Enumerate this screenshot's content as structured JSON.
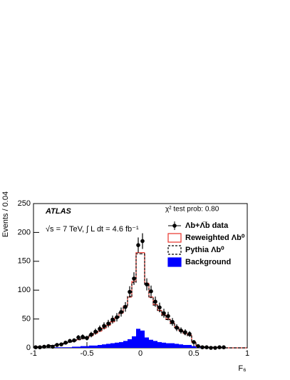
{
  "chart_data": {
    "type": "histogram",
    "title": "ATLAS",
    "subtitle": "√s = 7 TeV, ∫ L dt = 4.6 fb⁻¹",
    "annotation": "χ² test prob: 0.80",
    "x_label": "F₆",
    "y_label": "Events / 0.04",
    "bins": [
      -1,
      -0.96,
      -0.92,
      -0.88,
      -0.84,
      -0.8,
      -0.76,
      -0.72,
      -0.68,
      -0.64,
      -0.6,
      -0.56,
      -0.52,
      -0.48,
      -0.44,
      -0.4,
      -0.36,
      -0.32,
      -0.28,
      -0.24,
      -0.2,
      -0.16,
      -0.12,
      -0.08,
      -0.04,
      0,
      0.04,
      0.08,
      0.12,
      0.16,
      0.2,
      0.24,
      0.28,
      0.32,
      0.36,
      0.4,
      0.44,
      0.48,
      0.52,
      0.56,
      0.6,
      0.64,
      0.68,
      0.72,
      0.76,
      0.8,
      0.84,
      0.88,
      0.92,
      0.96,
      1
    ],
    "series": [
      {
        "name": "Λb+Λ̅b data",
        "color": "#000000",
        "values": [
          1,
          1,
          2,
          3,
          2,
          5,
          6,
          9,
          12,
          13,
          18,
          19,
          17,
          23,
          28,
          33,
          38,
          42,
          49,
          53,
          62,
          71,
          97,
          120,
          178,
          185,
          110,
          98,
          80,
          70,
          60,
          55,
          45,
          35,
          30,
          27,
          24,
          10,
          3,
          1,
          1,
          0,
          0,
          1,
          1,
          null,
          null,
          null,
          null,
          null
        ],
        "errors": [
          1,
          1,
          1.4,
          1.7,
          1.4,
          2.2,
          2.4,
          3,
          3.5,
          3.6,
          4.2,
          4.4,
          4.1,
          4.8,
          5.3,
          5.7,
          6.2,
          6.5,
          7,
          7.3,
          7.9,
          8.4,
          9.8,
          11,
          13.3,
          13.6,
          10.5,
          9.9,
          8.9,
          8.4,
          7.7,
          7.4,
          6.7,
          5.9,
          5.5,
          5.2,
          4.9,
          3.2,
          1.7,
          1,
          1,
          0,
          0,
          1,
          1,
          null,
          null,
          null,
          null,
          null
        ]
      },
      {
        "name": "Reweighted Λb⁰",
        "color": "#e8322a",
        "values": [
          1,
          2,
          2,
          3,
          4,
          5,
          6,
          8,
          10,
          12,
          14,
          16,
          18,
          21,
          25,
          29,
          34,
          39,
          45,
          52,
          60,
          72,
          88,
          115,
          165,
          165,
          112,
          88,
          75,
          65,
          57,
          50,
          43,
          36,
          30,
          25,
          22,
          10,
          3,
          2,
          1,
          1,
          1,
          1,
          0,
          0,
          0,
          0,
          0,
          0
        ]
      },
      {
        "name": "Pythia Λb⁰",
        "color": "#000000",
        "values": [
          1,
          2,
          2,
          3,
          4,
          5,
          6,
          8,
          10,
          12,
          14,
          16,
          19,
          22,
          26,
          30,
          35,
          40,
          46,
          52,
          61,
          73,
          89,
          113,
          163,
          163,
          110,
          87,
          74,
          64,
          56,
          49,
          42,
          35,
          29,
          24,
          21,
          9,
          3,
          2,
          1,
          1,
          1,
          1,
          0,
          0,
          0,
          0,
          0,
          0
        ]
      },
      {
        "name": "Background",
        "color": "#0000ff",
        "values": [
          0,
          0,
          0,
          0,
          0,
          1,
          1,
          1,
          1,
          2,
          2,
          3,
          3,
          4,
          4,
          5,
          6,
          7,
          8,
          9,
          10,
          12,
          15,
          20,
          33,
          30,
          18,
          14,
          12,
          10,
          9,
          8,
          8,
          7,
          6,
          5,
          5,
          3,
          1,
          1,
          0,
          0,
          0,
          0,
          0,
          0,
          0,
          0,
          0,
          0
        ]
      }
    ],
    "xlim": [
      -1,
      1
    ],
    "xticks": [
      -1,
      -0.5,
      0,
      0.5,
      1
    ],
    "ylim": [
      0,
      250
    ],
    "yticks": [
      0,
      50,
      100,
      150,
      200,
      250
    ],
    "legend": "upper right"
  }
}
